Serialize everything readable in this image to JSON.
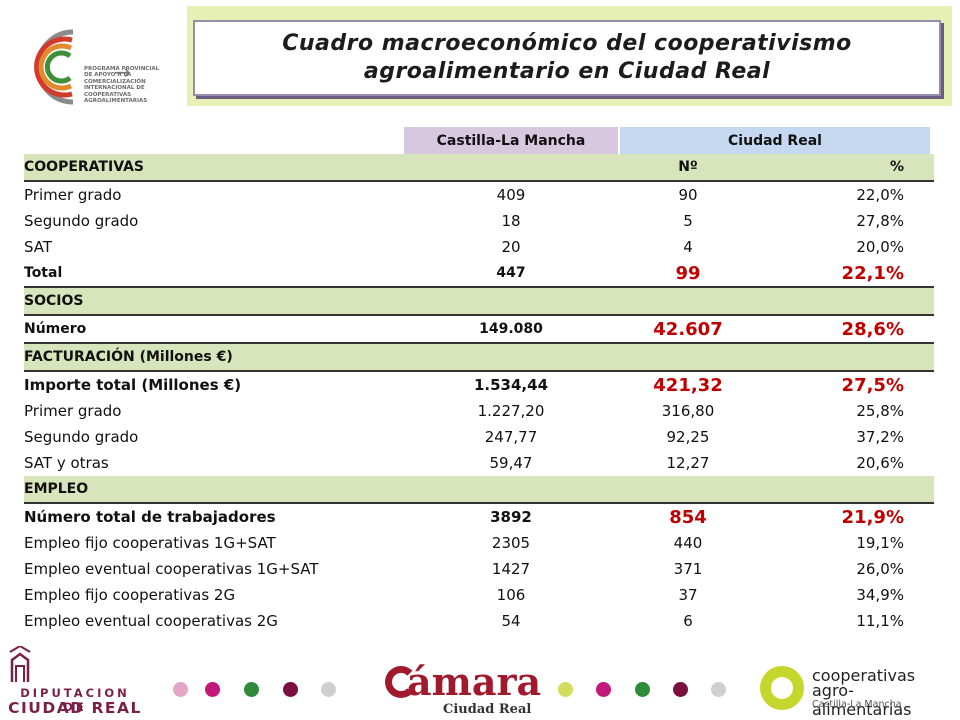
{
  "header": {
    "title_line1": "Cuadro macroeconómico del cooperativismo",
    "title_line2": "agroalimentario en Ciudad Real"
  },
  "logo_top": {
    "lines": [
      "PROGRAMA PROVINCIAL",
      "DE APOYO A LA",
      "COMERCIALIZACIÓN",
      "INTERNACIONAL DE",
      "COOPERATIVAS",
      "AGROALIMENTARIAS"
    ]
  },
  "table": {
    "col_headers": {
      "region1": "Castilla-La Mancha",
      "region2": "Ciudad Real"
    },
    "rows": [
      {
        "type": "section",
        "label": "COOPERATIVAS",
        "v1": "",
        "v2": "Nº",
        "v3": "%"
      },
      {
        "type": "data",
        "label": "Primer grado",
        "v1": "409",
        "v2": "90",
        "v3": "22,0%"
      },
      {
        "type": "data",
        "label": "Segundo grado",
        "v1": "18",
        "v2": "5",
        "v3": "27,8%"
      },
      {
        "type": "data",
        "label": "SAT",
        "v1": "20",
        "v2": "4",
        "v3": "20,0%"
      },
      {
        "type": "total",
        "label": "Total",
        "v1": "447",
        "v2": "99",
        "v3": "22,1%"
      },
      {
        "type": "section",
        "label": "SOCIOS",
        "v1": "",
        "v2": "",
        "v3": ""
      },
      {
        "type": "total",
        "label": "Número",
        "v1": "149.080",
        "v2": "42.607",
        "v3": "28,6%"
      },
      {
        "type": "section",
        "label": "FACTURACIÓN (Millones €)",
        "v1": "",
        "v2": "",
        "v3": ""
      },
      {
        "type": "highlight",
        "label": "Importe total (Millones €)",
        "v1": "1.534,44",
        "v2": "421,32",
        "v3": "27,5%"
      },
      {
        "type": "data",
        "label": "Primer grado",
        "v1": "1.227,20",
        "v2": "316,80",
        "v3": "25,8%"
      },
      {
        "type": "data",
        "label": "Segundo grado",
        "v1": "247,77",
        "v2": "92,25",
        "v3": "37,2%"
      },
      {
        "type": "data",
        "label": "SAT y otras",
        "v1": "59,47",
        "v2": "12,27",
        "v3": "20,6%"
      },
      {
        "type": "section",
        "label": "EMPLEO",
        "v1": "",
        "v2": "",
        "v3": ""
      },
      {
        "type": "highlight",
        "label": "Número total de trabajadores",
        "v1": "3892",
        "v2": "854",
        "v3": "21,9%"
      },
      {
        "type": "data",
        "label": "Empleo fijo cooperativas 1G+SAT",
        "v1": "2305",
        "v2": "440",
        "v3": "19,1%"
      },
      {
        "type": "data",
        "label": "Empleo eventual cooperativas 1G+SAT",
        "v1": "1427",
        "v2": "371",
        "v3": "26,0%"
      },
      {
        "type": "data",
        "label": "Empleo fijo cooperativas 2G",
        "v1": "106",
        "v2": "37",
        "v3": "34,9%"
      },
      {
        "type": "data",
        "label": "Empleo eventual cooperativas 2G",
        "v1": "54",
        "v2": "6",
        "v3": "11,1%"
      }
    ]
  },
  "footer": {
    "diputacion_line1": "DIPUTACION DE",
    "diputacion_line2": "CIUDAD REAL",
    "camara_word": "ámara",
    "camara_sub": "Ciudad Real",
    "coop_line1": "cooperativas",
    "coop_line2": "agro-alimentarias",
    "coop_line3": "Castilla-La Mancha",
    "dot_colors": [
      "#e3a6c7",
      "#c2187a",
      "#2e8b3a",
      "#7a0f40",
      "#cfcfcf",
      "#a0192d",
      "#d3dc5c",
      "#c2187a",
      "#2e8b3a",
      "#7a0f40",
      "#cfcfcf"
    ]
  },
  "colors": {
    "section_bg": "#d8e4bc",
    "head_cm_bg": "#d7c7df",
    "head_cr_bg": "#c6d8f0",
    "highlight_text": "#c00000",
    "title_band": "#e6f0b4"
  }
}
